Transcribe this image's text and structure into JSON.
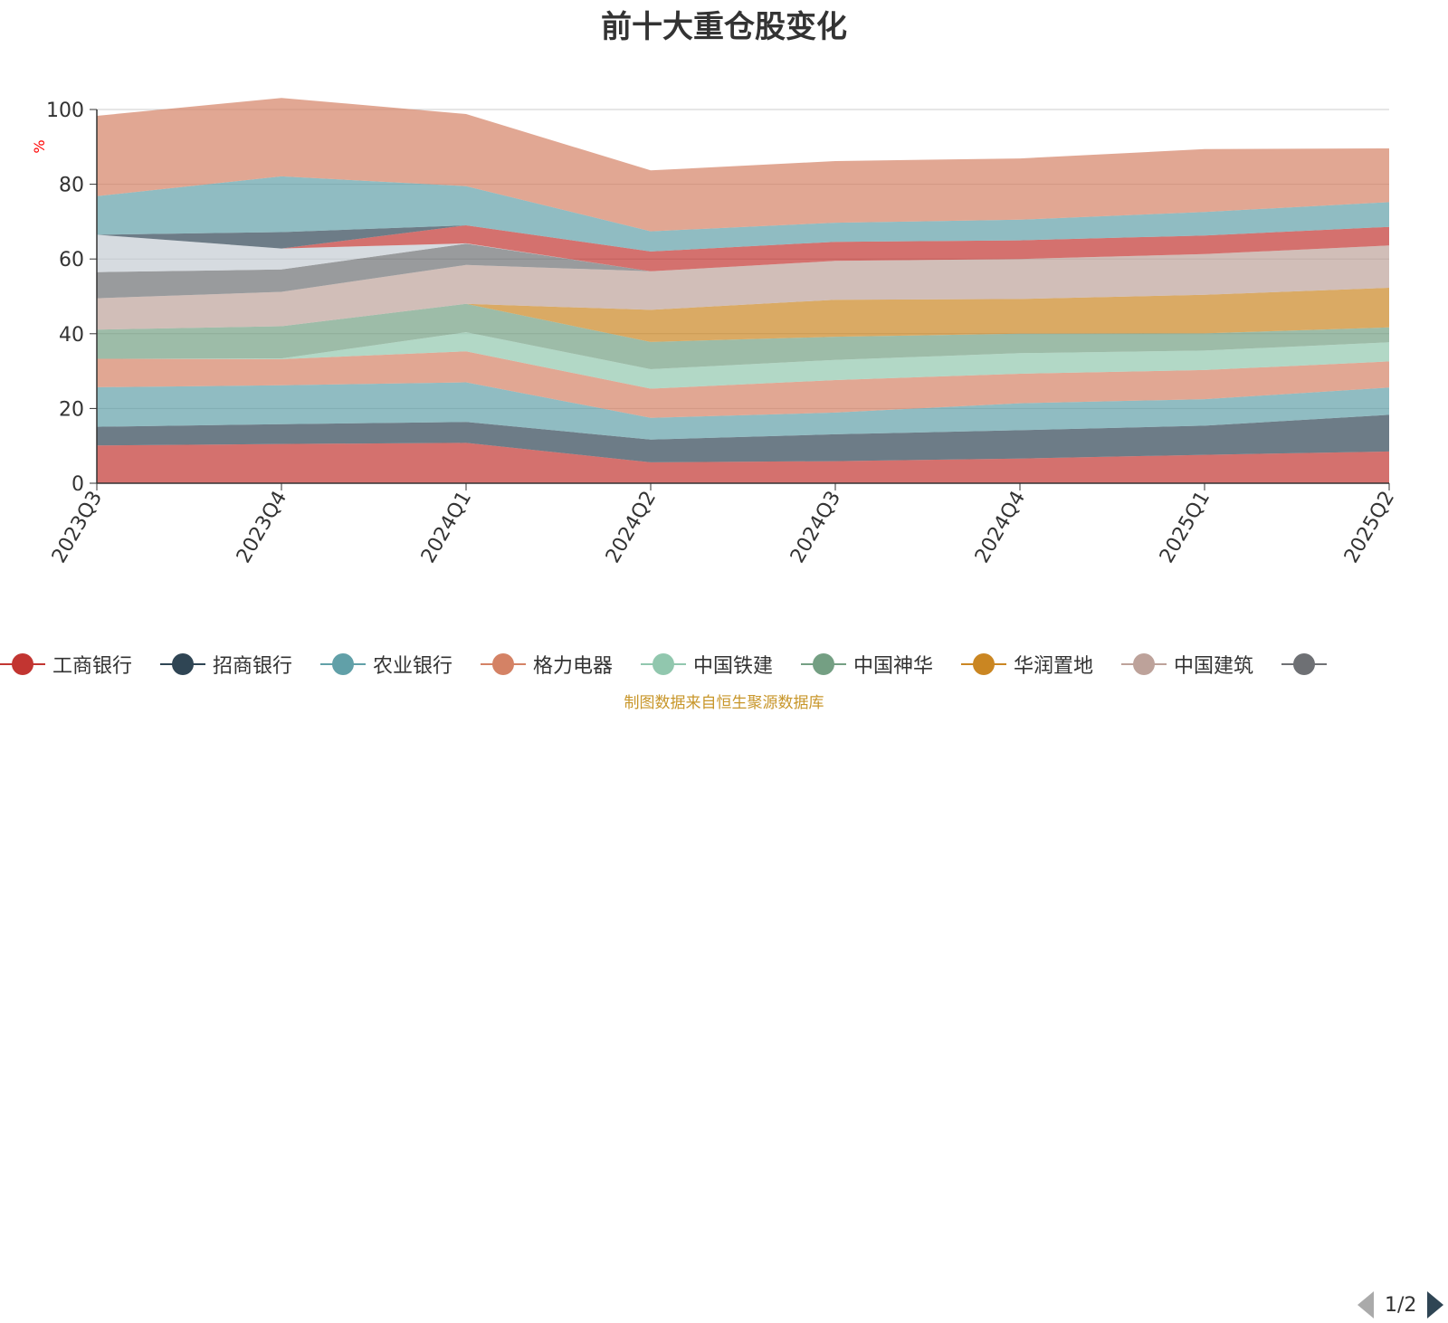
{
  "title": "前十大重仓股变化",
  "footer": "制图数据来自恒生聚源数据库",
  "pager": {
    "text": "1/2"
  },
  "chart_data": {
    "type": "area",
    "stacked": true,
    "categories": [
      "2023Q3",
      "2023Q4",
      "2024Q1",
      "2024Q2",
      "2024Q3",
      "2024Q4",
      "2025Q1",
      "2025Q2"
    ],
    "ylabel": "%",
    "ylim": [
      0,
      100
    ],
    "yticks": [
      0,
      20,
      40,
      60,
      80,
      100
    ],
    "grid": true,
    "legend_position": "bottom",
    "series": [
      {
        "name": "工商银行",
        "color": "#c23531",
        "values": [
          10.1,
          10.5,
          10.8,
          5.6,
          5.9,
          6.6,
          7.6,
          8.5
        ]
      },
      {
        "name": "招商银行",
        "color": "#2f4554",
        "values": [
          5.0,
          5.3,
          5.6,
          6.1,
          7.2,
          7.6,
          7.8,
          9.8
        ]
      },
      {
        "name": "农业银行",
        "color": "#61a0a8",
        "values": [
          10.6,
          10.4,
          10.6,
          5.8,
          5.8,
          7.2,
          7.1,
          7.3
        ]
      },
      {
        "name": "格力电器",
        "color": "#d48265",
        "values": [
          7.6,
          7.0,
          8.3,
          7.8,
          8.7,
          7.9,
          7.8,
          7.0
        ]
      },
      {
        "name": "中国铁建",
        "color": "#91c7ae",
        "values": [
          0.0,
          0.2,
          5.1,
          5.2,
          5.4,
          5.5,
          5.2,
          5.1
        ]
      },
      {
        "name": "中国神华",
        "color": "#749f83",
        "values": [
          7.8,
          8.6,
          7.6,
          7.3,
          6.2,
          5.2,
          4.6,
          4.0
        ]
      },
      {
        "name": "华润置地",
        "color": "#ca8622",
        "values": [
          0.0,
          0.0,
          0.0,
          8.6,
          9.9,
          9.3,
          10.3,
          10.6
        ]
      },
      {
        "name": "中国建筑",
        "color": "#bda29a",
        "values": [
          8.4,
          9.2,
          10.4,
          10.3,
          10.4,
          10.7,
          10.9,
          11.3
        ]
      },
      {
        "name": "",
        "color": "#6e7074",
        "values": [
          7.0,
          6.0,
          5.7,
          0.0,
          0.0,
          0.0,
          0.0,
          0.0
        ]
      },
      {
        "name": "",
        "color": "#c4ccd3",
        "values": [
          10.0,
          5.6,
          0.1,
          0.0,
          0.0,
          0.0,
          0.0,
          0.0
        ]
      },
      {
        "name": "",
        "color": "#c23531",
        "values": [
          0.0,
          0.0,
          4.8,
          5.3,
          5.1,
          5.0,
          5.0,
          5.0
        ]
      },
      {
        "name": "",
        "color": "#2f4554",
        "values": [
          0.0,
          4.4,
          0.0,
          0.0,
          0.0,
          0.0,
          0.0,
          0.0
        ]
      },
      {
        "name": "",
        "color": "#61a0a8",
        "values": [
          10.3,
          14.9,
          10.5,
          5.4,
          5.1,
          5.5,
          6.3,
          6.6
        ]
      },
      {
        "name": "",
        "color": "#d48265",
        "values": [
          21.5,
          21.0,
          19.3,
          16.3,
          16.5,
          16.4,
          16.8,
          14.4
        ]
      }
    ]
  }
}
